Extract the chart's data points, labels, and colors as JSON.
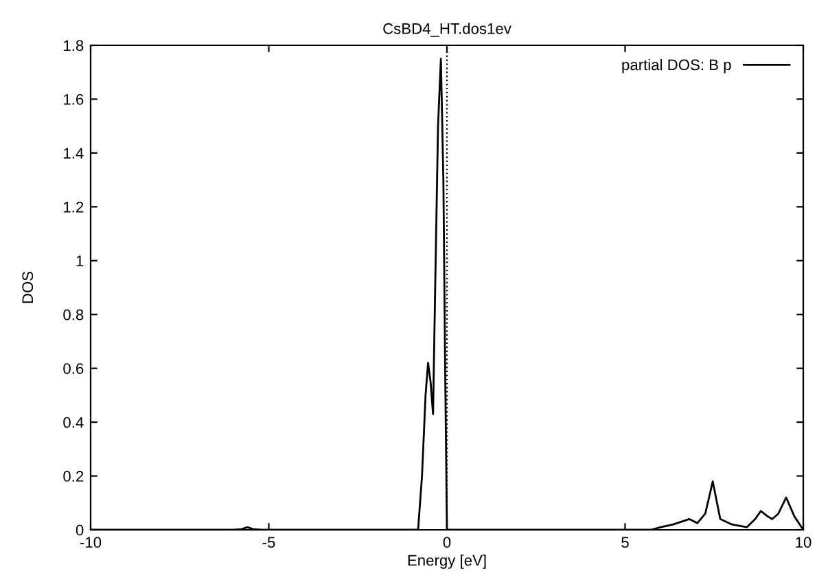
{
  "chart_data": {
    "type": "line",
    "title": "CsBD4_HT.dos1ev",
    "xlabel": "Energy [eV]",
    "ylabel": "DOS",
    "series": [
      {
        "name": "partial DOS: B p",
        "color": "#000000",
        "x": [
          -10,
          -6.0,
          -5.75,
          -5.6,
          -5.45,
          -5.2,
          -1.0,
          -0.81,
          -0.7,
          -0.6,
          -0.53,
          -0.46,
          -0.39,
          -0.33,
          -0.25,
          -0.17,
          -0.1,
          -0.05,
          0.0,
          0.5,
          5.0,
          5.72,
          6.0,
          6.35,
          6.8,
          7.03,
          7.25,
          7.46,
          7.67,
          8.0,
          8.42,
          8.65,
          8.81,
          9.0,
          9.13,
          9.3,
          9.52,
          9.75,
          10
        ],
        "values": [
          0,
          0,
          0.003,
          0.01,
          0.003,
          0,
          0,
          0,
          0.2,
          0.5,
          0.62,
          0.55,
          0.43,
          0.9,
          1.5,
          1.75,
          1.3,
          0.6,
          0,
          0,
          0,
          0,
          0.01,
          0.02,
          0.04,
          0.025,
          0.06,
          0.18,
          0.04,
          0.02,
          0.01,
          0.04,
          0.07,
          0.05,
          0.04,
          0.06,
          0.12,
          0.05,
          0
        ]
      }
    ],
    "xlim": [
      -10,
      10
    ],
    "ylim": [
      0,
      1.8
    ],
    "xticks": [
      -10,
      -5,
      0,
      5,
      10
    ],
    "yticks": [
      0,
      0.2,
      0.4,
      0.6,
      0.8,
      1,
      1.2,
      1.4,
      1.6,
      1.8
    ],
    "ref_lines": [
      {
        "axis": "x",
        "value": 0,
        "color": "#000000",
        "line_style": "dotted"
      }
    ],
    "legend": "top right",
    "grid": false
  }
}
